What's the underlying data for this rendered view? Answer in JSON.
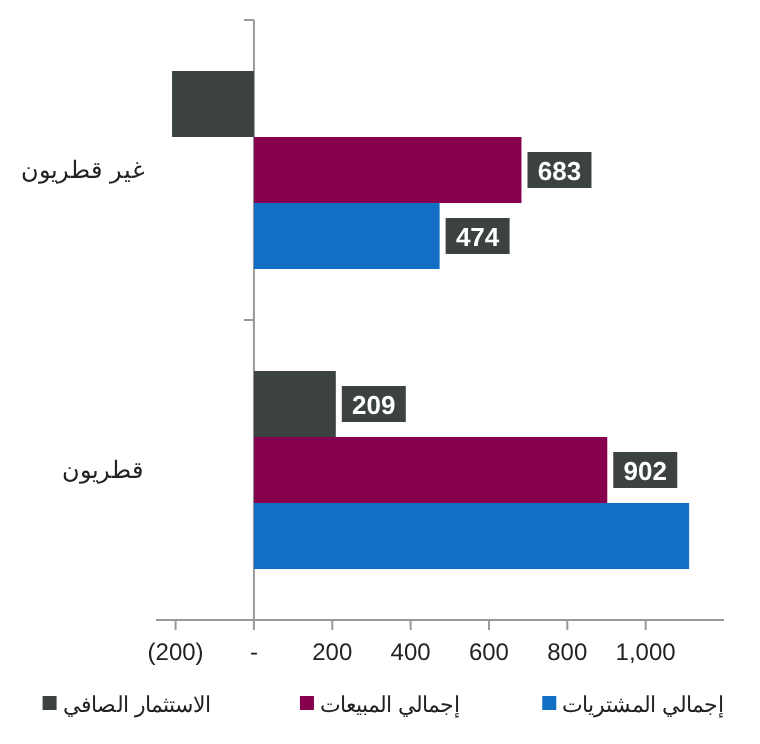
{
  "chart_data": {
    "type": "bar",
    "orientation": "horizontal",
    "categories": [
      "غير قطريون",
      "قطريون"
    ],
    "series": [
      {
        "name": "الاستثمار الصافي",
        "color": "#3c4241",
        "values": [
          -209,
          209
        ],
        "value_labels": [
          null,
          "209"
        ]
      },
      {
        "name": "إجمالي المبيعات",
        "color": "#87004e",
        "values": [
          683,
          902
        ],
        "value_labels": [
          "683",
          "902"
        ]
      },
      {
        "name": "إجمالي المشتريات",
        "color": "#126fc4",
        "values": [
          474,
          1111
        ],
        "value_labels": [
          "474",
          null
        ]
      }
    ],
    "xlim": [
      -250,
      1200
    ],
    "xticks": [
      {
        "value": -200,
        "label": "(200)"
      },
      {
        "value": 0,
        "label": "-"
      },
      200,
      400,
      600,
      800,
      {
        "value": 1000,
        "label": "1,000"
      }
    ],
    "ref_lines": [
      {
        "axis": "x",
        "value": 0,
        "color": "#999999"
      }
    ],
    "grid": false,
    "legend": "bottom"
  }
}
